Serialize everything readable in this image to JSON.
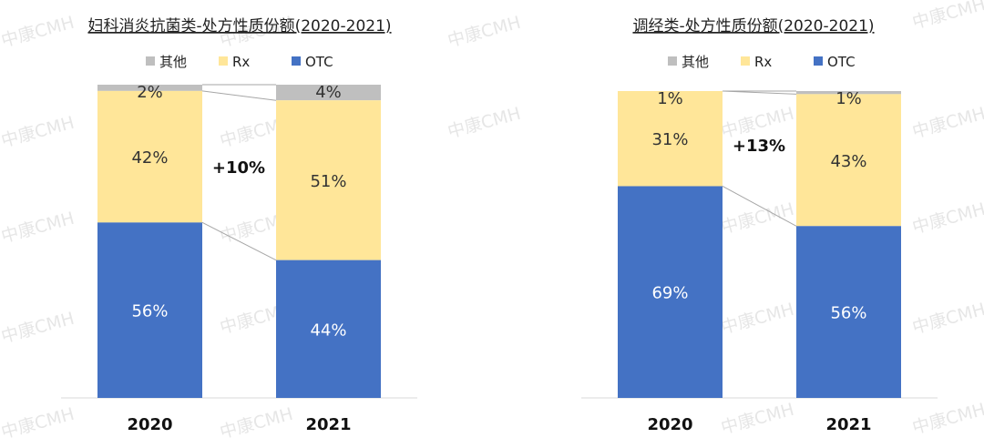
{
  "watermark": "中康CMH",
  "colors": {
    "other": "#BFBFBF",
    "rx": "#FFE699",
    "otc": "#4472C4",
    "connector": "#A6A6A6"
  },
  "chart_data": [
    {
      "type": "bar",
      "stacked": true,
      "title": "妇科消炎抗菌类-处方性质份额(2020-2021)",
      "categories": [
        "2020",
        "2021"
      ],
      "legend": [
        "其他",
        "Rx",
        "OTC"
      ],
      "legend_position": "top",
      "series": [
        {
          "name": "OTC",
          "values": [
            56,
            44
          ],
          "labels": [
            "56%",
            "44%"
          ]
        },
        {
          "name": "Rx",
          "values": [
            42,
            51
          ],
          "labels": [
            "42%",
            "51%"
          ]
        },
        {
          "name": "其他",
          "values": [
            2,
            4
          ],
          "labels": [
            "2%",
            "4%"
          ]
        }
      ],
      "annotation": "+10%",
      "ylim": [
        0,
        100
      ]
    },
    {
      "type": "bar",
      "stacked": true,
      "title": "调经类-处方性质份额(2020-2021)",
      "categories": [
        "2020",
        "2021"
      ],
      "legend": [
        "其他",
        "Rx",
        "OTC"
      ],
      "legend_position": "top",
      "series": [
        {
          "name": "OTC",
          "values": [
            69,
            56
          ],
          "labels": [
            "69%",
            "56%"
          ]
        },
        {
          "name": "Rx",
          "values": [
            31,
            43
          ],
          "labels": [
            "31%",
            "43%"
          ]
        },
        {
          "name": "其他",
          "values": [
            1,
            1
          ],
          "labels": [
            "1%",
            "1%"
          ]
        }
      ],
      "annotation": "+13%",
      "ylim": [
        0,
        100
      ]
    }
  ]
}
